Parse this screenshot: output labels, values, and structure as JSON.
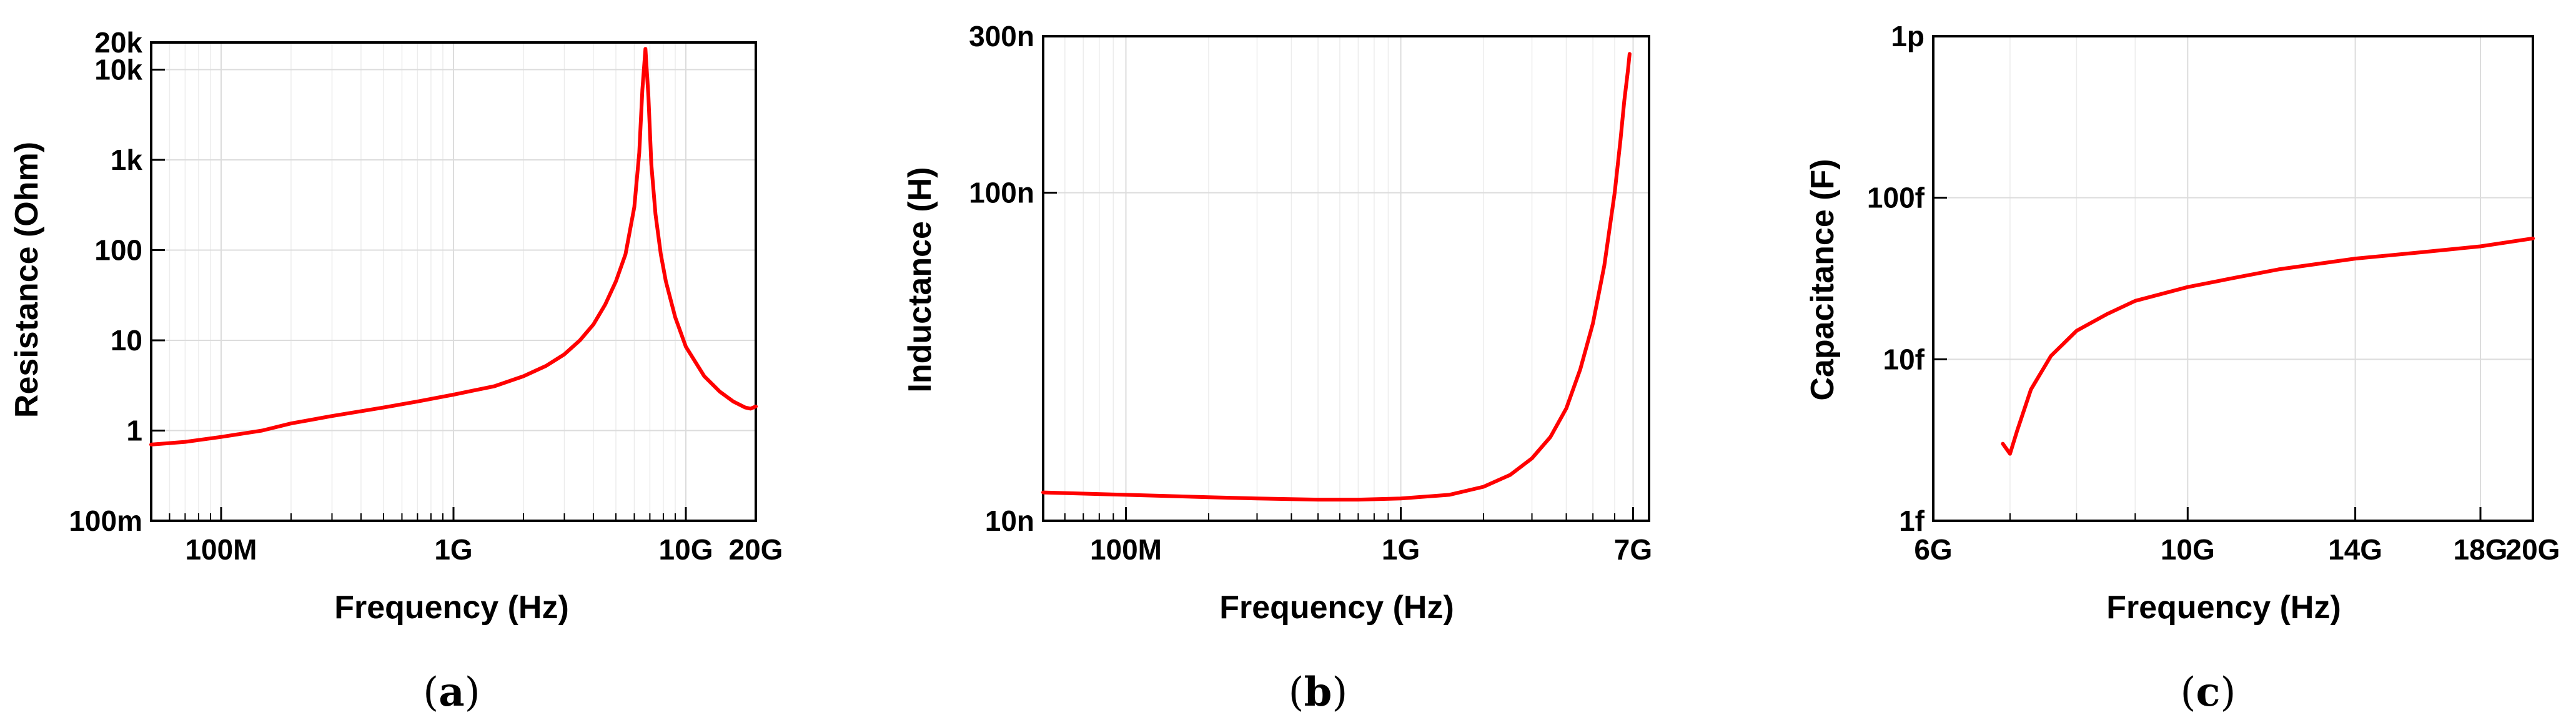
{
  "chart_data": [
    {
      "type": "line",
      "panel": "(a)",
      "xlabel": "Frequency (Hz)",
      "ylabel": "Resistance (Ohm)",
      "xscale": "log",
      "yscale": "log",
      "xlim": [
        50000000.0,
        20000000000.0
      ],
      "ylim": [
        0.1,
        20000
      ],
      "x_ticks": [
        {
          "value": 100000000.0,
          "label": "100M"
        },
        {
          "value": 1000000000.0,
          "label": "1G"
        },
        {
          "value": 10000000000.0,
          "label": "10G"
        },
        {
          "value": 20000000000.0,
          "label": "20G"
        }
      ],
      "y_ticks": [
        {
          "value": 0.1,
          "label": "100m"
        },
        {
          "value": 1,
          "label": "1"
        },
        {
          "value": 10,
          "label": "10"
        },
        {
          "value": 100,
          "label": "100"
        },
        {
          "value": 1000,
          "label": "1k"
        },
        {
          "value": 10000,
          "label": "10k"
        },
        {
          "value": 20000,
          "label": "20k"
        }
      ],
      "grid": true,
      "color": "#ff0000",
      "series": [
        {
          "x": [
            50000000.0,
            70000000.0,
            100000000.0,
            150000000.0,
            200000000.0,
            300000000.0,
            500000000.0,
            700000000.0,
            1000000000.0,
            1500000000.0,
            2000000000.0,
            2500000000.0,
            3000000000.0,
            3500000000.0,
            4000000000.0,
            4500000000.0,
            5000000000.0,
            5500000000.0,
            6000000000.0,
            6300000000.0,
            6500000000.0,
            6700000000.0,
            6900000000.0,
            7100000000.0,
            7400000000.0,
            7800000000.0,
            8200000000.0,
            9000000000.0,
            10000000000.0,
            12000000000.0,
            14000000000.0,
            16000000000.0,
            18000000000.0,
            19000000000.0,
            20000000000.0
          ],
          "y": [
            0.7,
            0.75,
            0.85,
            1.0,
            1.2,
            1.45,
            1.8,
            2.1,
            2.5,
            3.1,
            4.0,
            5.2,
            7.0,
            10,
            15,
            25,
            45,
            90,
            300,
            1200,
            6000,
            17000,
            5000,
            900,
            250,
            90,
            45,
            18,
            8.5,
            4.0,
            2.7,
            2.1,
            1.8,
            1.75,
            1.85
          ]
        }
      ]
    },
    {
      "type": "line",
      "panel": "(b)",
      "xlabel": "Frequency (Hz)",
      "ylabel": "Inductance (H)",
      "xscale": "log",
      "yscale": "log",
      "xlim": [
        50000000.0,
        8000000000.0
      ],
      "ylim": [
        1e-08,
        3e-07
      ],
      "x_ticks": [
        {
          "value": 100000000.0,
          "label": "100M"
        },
        {
          "value": 1000000000.0,
          "label": "1G"
        },
        {
          "value": 7000000000.0,
          "label": "7G"
        }
      ],
      "y_ticks": [
        {
          "value": 1e-08,
          "label": "10n"
        },
        {
          "value": 1e-07,
          "label": "100n"
        },
        {
          "value": 3e-07,
          "label": "300n"
        }
      ],
      "grid": true,
      "color": "#ff0000",
      "series": [
        {
          "x": [
            50000000.0,
            100000000.0,
            200000000.0,
            300000000.0,
            500000000.0,
            700000000.0,
            1000000000.0,
            1500000000.0,
            2000000000.0,
            2500000000.0,
            3000000000.0,
            3500000000.0,
            4000000000.0,
            4500000000.0,
            5000000000.0,
            5500000000.0,
            6000000000.0,
            6300000000.0,
            6500000000.0,
            6700000000.0,
            6800000000.0
          ],
          "y": [
            1.22e-08,
            1.2e-08,
            1.18e-08,
            1.17e-08,
            1.16e-08,
            1.16e-08,
            1.17e-08,
            1.2e-08,
            1.27e-08,
            1.38e-08,
            1.55e-08,
            1.8e-08,
            2.2e-08,
            2.9e-08,
            4e-08,
            6e-08,
            1e-07,
            1.45e-07,
            1.9e-07,
            2.35e-07,
            2.65e-07
          ]
        }
      ]
    },
    {
      "type": "line",
      "panel": "(c)",
      "xlabel": "Frequency (Hz)",
      "ylabel": "Capacitance (F)",
      "xscale": "log",
      "yscale": "log",
      "xlim": [
        6000000000.0,
        20000000000.0
      ],
      "ylim": [
        1e-15,
        1e-12
      ],
      "x_ticks": [
        {
          "value": 6000000000.0,
          "label": "6G"
        },
        {
          "value": 10000000000.0,
          "label": "10G"
        },
        {
          "value": 14000000000.0,
          "label": "14G"
        },
        {
          "value": 18000000000.0,
          "label": "18G"
        },
        {
          "value": 20000000000.0,
          "label": "20G"
        }
      ],
      "y_ticks": [
        {
          "value": 1e-15,
          "label": "1f"
        },
        {
          "value": 1e-14,
          "label": "10f"
        },
        {
          "value": 1e-13,
          "label": "100f"
        },
        {
          "value": 1e-12,
          "label": "1p"
        }
      ],
      "grid": true,
      "color": "#ff0000",
      "series": [
        {
          "x": [
            6900000000.0,
            7000000000.0,
            7100000000.0,
            7300000000.0,
            7600000000.0,
            8000000000.0,
            8500000000.0,
            9000000000.0,
            10000000000.0,
            11000000000.0,
            12000000000.0,
            14000000000.0,
            16000000000.0,
            18000000000.0,
            20000000000.0
          ],
          "y": [
            3e-15,
            2.6e-15,
            3.6e-15,
            6.5e-15,
            1.05e-14,
            1.5e-14,
            1.9e-14,
            2.3e-14,
            2.8e-14,
            3.2e-14,
            3.6e-14,
            4.2e-14,
            4.6e-14,
            5e-14,
            5.6e-14
          ]
        }
      ]
    }
  ]
}
